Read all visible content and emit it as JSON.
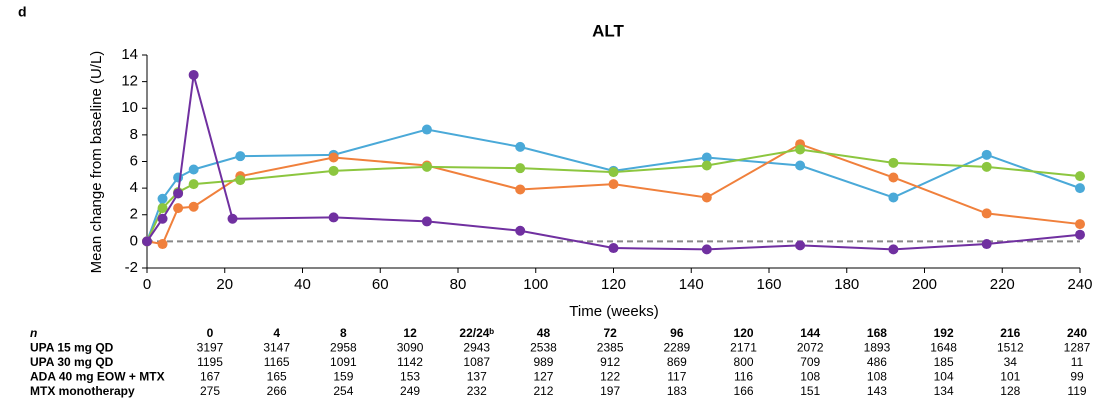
{
  "panel_label": "d",
  "chart_data": {
    "type": "line",
    "title": "ALT",
    "x_label": "Time (weeks)",
    "y_label": "Mean change from baseline (U/L)",
    "xlim": [
      0,
      240
    ],
    "xticks": [
      0,
      20,
      40,
      60,
      80,
      100,
      120,
      140,
      160,
      180,
      200,
      220,
      240
    ],
    "ylim": [
      -2,
      14
    ],
    "yticks": [
      -2,
      0,
      2,
      4,
      6,
      8,
      10,
      12,
      14
    ],
    "reference_line": 0,
    "grid": false,
    "series": [
      {
        "color": "#4aa9d8",
        "x": [
          0,
          4,
          8,
          12,
          24,
          48,
          72,
          96,
          120,
          144,
          168,
          192,
          216,
          240
        ],
        "values": [
          0,
          3.2,
          4.8,
          5.4,
          6.4,
          6.5,
          8.4,
          7.1,
          5.3,
          6.3,
          5.7,
          3.3,
          6.5,
          4.0
        ]
      },
      {
        "color": "#f0803c",
        "x": [
          0,
          4,
          8,
          12,
          24,
          48,
          72,
          96,
          120,
          144,
          168,
          192,
          216,
          240
        ],
        "values": [
          0,
          -0.2,
          2.5,
          2.6,
          4.9,
          6.3,
          5.7,
          3.9,
          4.3,
          3.3,
          7.3,
          4.8,
          2.1,
          1.3
        ]
      },
      {
        "color": "#8cc63f",
        "x": [
          0,
          4,
          8,
          12,
          24,
          48,
          72,
          96,
          120,
          144,
          168,
          192,
          216,
          240
        ],
        "values": [
          0,
          2.5,
          3.7,
          4.3,
          4.6,
          5.3,
          5.6,
          5.5,
          5.2,
          5.7,
          6.9,
          5.9,
          5.6,
          4.9
        ]
      },
      {
        "color": "#7030a0",
        "x": [
          0,
          4,
          8,
          12,
          22,
          48,
          72,
          96,
          120,
          144,
          168,
          192,
          216,
          240
        ],
        "values": [
          0,
          1.7,
          3.6,
          12.5,
          1.7,
          1.8,
          1.5,
          0.8,
          -0.5,
          -0.6,
          -0.3,
          -0.6,
          -0.2,
          0.5
        ]
      }
    ]
  },
  "table": {
    "header_label": "n",
    "columns": [
      "0",
      "4",
      "8",
      "12",
      "22/24ᵇ",
      "48",
      "72",
      "96",
      "120",
      "144",
      "168",
      "192",
      "216",
      "240"
    ],
    "rows": [
      {
        "label": "UPA 15 mg QD",
        "values": [
          3197,
          3147,
          2958,
          3090,
          2943,
          2538,
          2385,
          2289,
          2171,
          2072,
          1893,
          1648,
          1512,
          1287
        ]
      },
      {
        "label": "UPA 30 mg QD",
        "values": [
          1195,
          1165,
          1091,
          1142,
          1087,
          989,
          912,
          869,
          800,
          709,
          486,
          185,
          34,
          11
        ]
      },
      {
        "label": "ADA 40 mg EOW + MTX",
        "values": [
          167,
          165,
          159,
          153,
          137,
          127,
          122,
          117,
          116,
          108,
          108,
          104,
          101,
          99
        ]
      },
      {
        "label": "MTX monotherapy",
        "values": [
          275,
          266,
          254,
          249,
          232,
          212,
          197,
          183,
          166,
          151,
          143,
          134,
          128,
          119
        ]
      }
    ]
  }
}
